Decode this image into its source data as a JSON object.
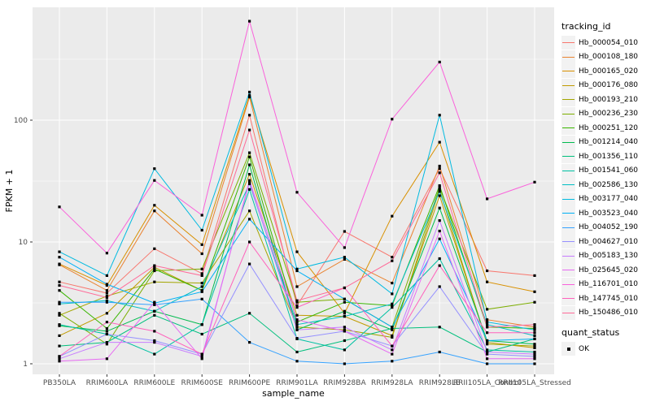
{
  "chart_data": {
    "type": "line",
    "title": "",
    "xlabel": "sample_name",
    "ylabel": "FPKM + 1",
    "y_scale": "log10",
    "yticks": [
      "1",
      "10",
      "100"
    ],
    "ytick_values": [
      1,
      10,
      100
    ],
    "y_minor_values": [
      3.1623,
      31.623,
      316.23
    ],
    "categories": [
      "PB350LA",
      "RRIM600LA",
      "RRIM600LE",
      "RRIM600SE",
      "RRIM600PE",
      "RRIM901LA",
      "RRIM928BA",
      "RRIM928LA",
      "RRIM928LE",
      "RRII105LA_Control",
      "RRII105LA_Stressed"
    ],
    "legend_title": "tracking_id",
    "legend_position": "right",
    "grid": true,
    "panel_bg": "#EBEBEB",
    "grid_color": "#FFFFFF",
    "axis_text_color": "#4D4D4D",
    "tick_color": "#333333",
    "point_color": "#000000",
    "point_shape": "square",
    "quant_status": {
      "title": "quant_status",
      "items": [
        {
          "label": "OK",
          "marker": "black-square"
        }
      ]
    },
    "series": [
      {
        "name": "Hb_000054_010",
        "color": "#F8766D",
        "values": [
          4.7,
          3.8,
          8.8,
          5.5,
          110,
          3.0,
          12.2,
          7.5,
          40,
          5.8,
          5.3
        ]
      },
      {
        "name": "Hb_000108_180",
        "color": "#EA8331",
        "values": [
          6.5,
          4.0,
          18,
          8.0,
          155,
          4.3,
          7.2,
          4.6,
          42,
          2.3,
          2.0
        ]
      },
      {
        "name": "Hb_000165_020",
        "color": "#D89000",
        "values": [
          6.6,
          4.4,
          20,
          9.5,
          160,
          8.3,
          2.6,
          16.3,
          66,
          4.7,
          3.9
        ]
      },
      {
        "name": "Hb_000176_080",
        "color": "#C09B00",
        "values": [
          1.7,
          2.6,
          6.2,
          4.0,
          36,
          2.5,
          2.45,
          1.7,
          24,
          1.5,
          1.35
        ]
      },
      {
        "name": "Hb_000193_210",
        "color": "#A3A500",
        "values": [
          2.5,
          3.6,
          4.7,
          4.6,
          18,
          2.0,
          1.9,
          1.65,
          27,
          1.45,
          1.4
        ]
      },
      {
        "name": "Hb_000236_230",
        "color": "#7CAE00",
        "values": [
          2.6,
          1.45,
          5.8,
          6.0,
          54,
          3.2,
          3.4,
          2.0,
          28,
          2.8,
          3.2
        ]
      },
      {
        "name": "Hb_000251_120",
        "color": "#39B600",
        "values": [
          4.0,
          1.95,
          6.0,
          4.0,
          50,
          2.2,
          3.2,
          3.0,
          29,
          2.0,
          1.95
        ]
      },
      {
        "name": "Hb_001214_040",
        "color": "#00BB4E",
        "values": [
          2.05,
          1.85,
          2.7,
          2.1,
          43,
          1.9,
          2.7,
          1.9,
          19,
          1.55,
          1.45
        ]
      },
      {
        "name": "Hb_001356_110",
        "color": "#00BF7D",
        "values": [
          1.4,
          1.5,
          2.5,
          1.75,
          2.6,
          1.25,
          1.55,
          1.95,
          2.0,
          1.25,
          1.6
        ]
      },
      {
        "name": "Hb_001541_060",
        "color": "#00C1A3",
        "values": [
          2.1,
          1.75,
          1.2,
          2.1,
          27,
          1.6,
          1.3,
          2.9,
          7.3,
          1.3,
          1.25
        ]
      },
      {
        "name": "Hb_002586_130",
        "color": "#00BFC4",
        "values": [
          3.1,
          3.3,
          2.7,
          4.3,
          30,
          2.1,
          2.45,
          3.1,
          26,
          2.1,
          1.7
        ]
      },
      {
        "name": "Hb_003177_040",
        "color": "#00BAE0",
        "values": [
          8.3,
          5.3,
          40,
          12.5,
          170,
          6.0,
          7.5,
          3.75,
          110,
          2.2,
          1.9
        ]
      },
      {
        "name": "Hb_003523_040",
        "color": "#00B0F6",
        "values": [
          7.5,
          4.5,
          3.15,
          3.9,
          15.4,
          5.8,
          3.4,
          2.0,
          10.6,
          1.55,
          1.6
        ]
      },
      {
        "name": "Hb_004052_190",
        "color": "#35A2FF",
        "values": [
          3.2,
          3.2,
          3.05,
          3.4,
          1.5,
          1.05,
          1.0,
          1.05,
          1.25,
          1.0,
          1.0
        ]
      },
      {
        "name": "Hb_004627_010",
        "color": "#9590FF",
        "values": [
          1.15,
          1.75,
          1.55,
          1.2,
          6.6,
          1.62,
          1.85,
          1.4,
          4.3,
          1.2,
          1.15
        ]
      },
      {
        "name": "Hb_005183_130",
        "color": "#C77CFF",
        "values": [
          1.1,
          1.5,
          1.5,
          1.15,
          31,
          1.9,
          2.0,
          1.3,
          15,
          1.25,
          1.2
        ]
      },
      {
        "name": "Hb_025645_020",
        "color": "#E76BF3",
        "values": [
          1.05,
          1.1,
          3.2,
          1.1,
          32,
          2.3,
          1.85,
          1.2,
          12.3,
          1.1,
          1.1
        ]
      },
      {
        "name": "Hb_116701_010",
        "color": "#FA62DB",
        "values": [
          19.4,
          8.1,
          32,
          16.6,
          650,
          25.6,
          9.0,
          102,
          300,
          22.6,
          31
        ]
      },
      {
        "name": "Hb_147745_010",
        "color": "#FF62BC",
        "values": [
          1.15,
          2.2,
          1.85,
          1.2,
          10,
          2.9,
          4.2,
          1.4,
          6.4,
          1.8,
          1.8
        ]
      },
      {
        "name": "Hb_150486_010",
        "color": "#FF6A98",
        "values": [
          4.4,
          3.5,
          6.4,
          5.3,
          83,
          3.3,
          4.2,
          7.0,
          37,
          2.0,
          2.1
        ]
      }
    ]
  }
}
